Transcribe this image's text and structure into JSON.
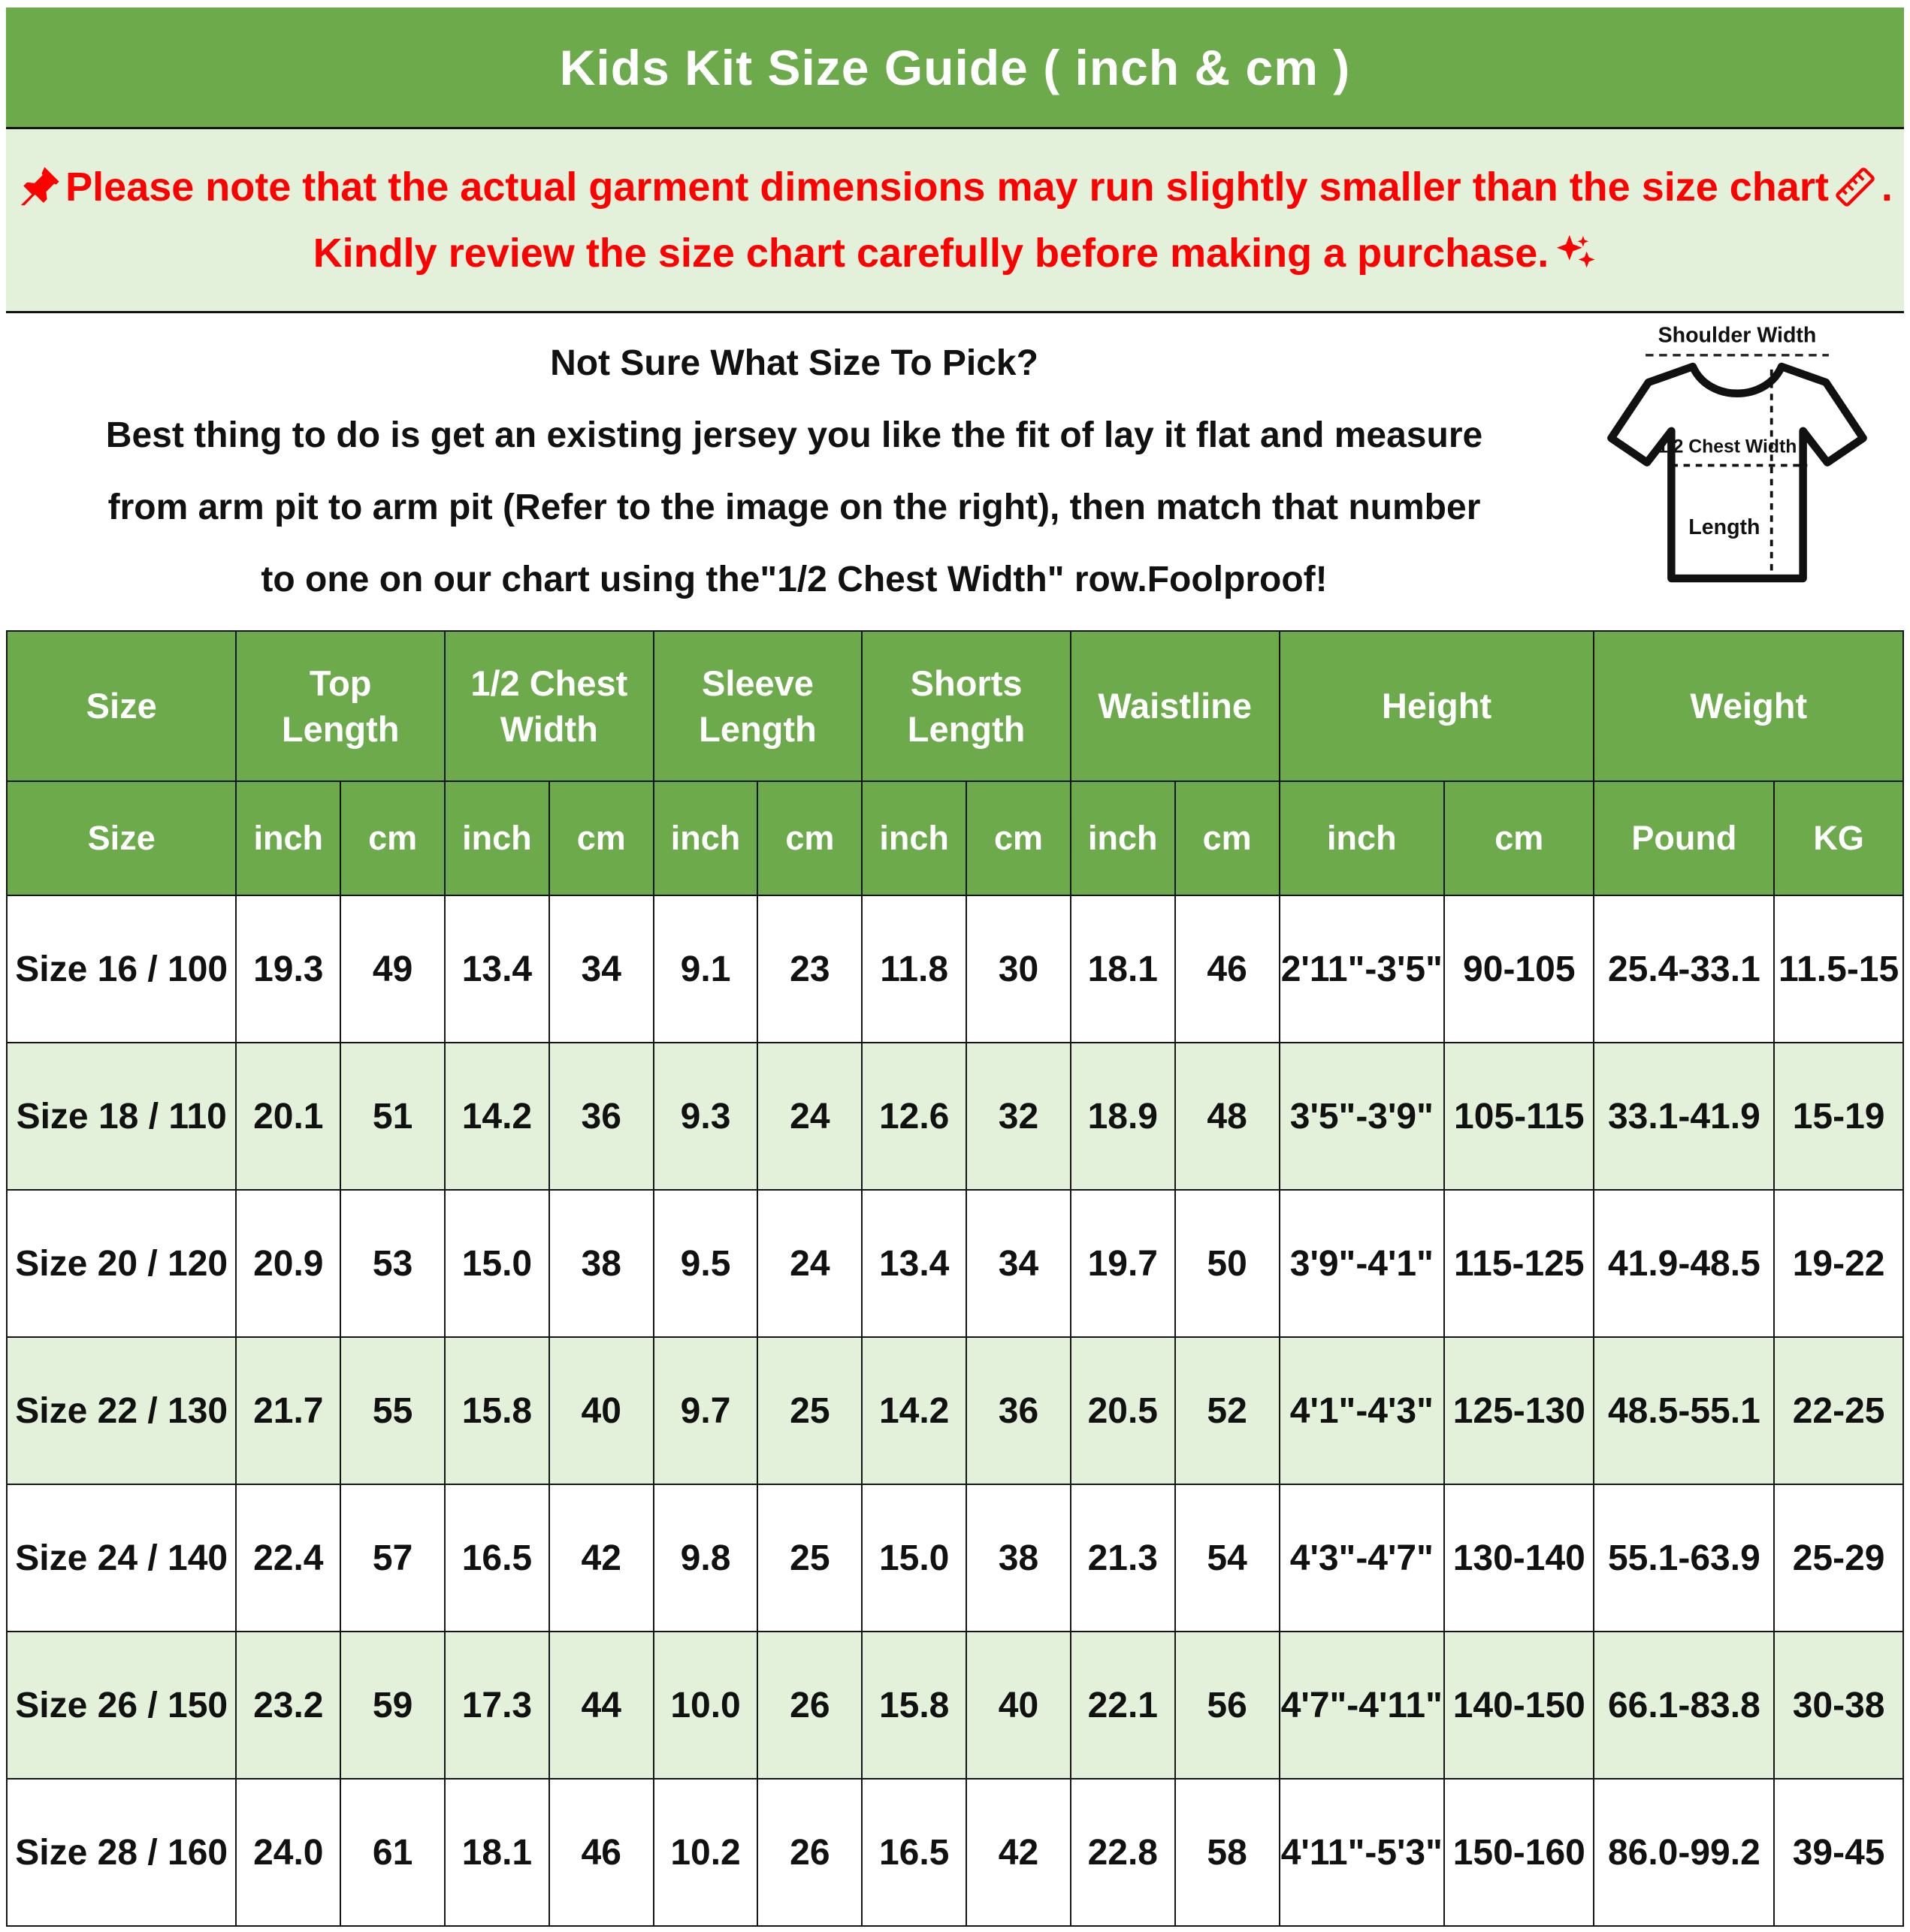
{
  "title": "Kids Kit Size Guide ( inch & cm )",
  "notice": {
    "line1": "Please note that the actual garment dimensions may run slightly smaller than the size chart",
    "line1_suffix": ".",
    "line2": "Kindly review the size chart carefully before making a purchase.",
    "text_color": "#ff0000",
    "icons": [
      "pushpin-icon",
      "ruler-icon",
      "sparkles-icon"
    ]
  },
  "howto": {
    "heading": "Not Sure What Size To Pick?",
    "line1": "Best thing to do is get an existing jersey you like the fit of lay it flat and measure",
    "line2": "from arm pit to arm pit (Refer to the image on the right), then match that number",
    "line3": "to one on our chart using the\"1/2 Chest Width\" row.Foolproof!"
  },
  "diagram": {
    "shoulder_label": "Shoulder Width",
    "chest_label": "1/2 Chest Width",
    "length_label": "Length"
  },
  "table": {
    "groups": [
      {
        "label": "Size"
      },
      {
        "label": "Top Length"
      },
      {
        "label": "1/2 Chest Width"
      },
      {
        "label": "Sleeve Length"
      },
      {
        "label": "Shorts Length"
      },
      {
        "label": "Waistline"
      },
      {
        "label": "Height"
      },
      {
        "label": "Weight"
      }
    ],
    "subheaders": [
      "Size",
      "inch",
      "cm",
      "inch",
      "cm",
      "inch",
      "cm",
      "inch",
      "cm",
      "inch",
      "cm",
      "inch",
      "cm",
      "Pound",
      "KG"
    ],
    "rows": [
      [
        "Size 16 / 100",
        "19.3",
        "49",
        "13.4",
        "34",
        "9.1",
        "23",
        "11.8",
        "30",
        "18.1",
        "46",
        "2'11\"-3'5\"",
        "90-105",
        "25.4-33.1",
        "11.5-15"
      ],
      [
        "Size 18 / 110",
        "20.1",
        "51",
        "14.2",
        "36",
        "9.3",
        "24",
        "12.6",
        "32",
        "18.9",
        "48",
        "3'5\"-3'9\"",
        "105-115",
        "33.1-41.9",
        "15-19"
      ],
      [
        "Size 20 / 120",
        "20.9",
        "53",
        "15.0",
        "38",
        "9.5",
        "24",
        "13.4",
        "34",
        "19.7",
        "50",
        "3'9\"-4'1\"",
        "115-125",
        "41.9-48.5",
        "19-22"
      ],
      [
        "Size 22 / 130",
        "21.7",
        "55",
        "15.8",
        "40",
        "9.7",
        "25",
        "14.2",
        "36",
        "20.5",
        "52",
        "4'1\"-4'3\"",
        "125-130",
        "48.5-55.1",
        "22-25"
      ],
      [
        "Size 24 / 140",
        "22.4",
        "57",
        "16.5",
        "42",
        "9.8",
        "25",
        "15.0",
        "38",
        "21.3",
        "54",
        "4'3\"-4'7\"",
        "130-140",
        "55.1-63.9",
        "25-29"
      ],
      [
        "Size 26 / 150",
        "23.2",
        "59",
        "17.3",
        "44",
        "10.0",
        "26",
        "15.8",
        "40",
        "22.1",
        "56",
        "4'7\"-4'11\"",
        "140-150",
        "66.1-83.8",
        "30-38"
      ],
      [
        "Size 28 / 160",
        "24.0",
        "61",
        "18.1",
        "46",
        "10.2",
        "26",
        "16.5",
        "42",
        "22.8",
        "58",
        "4'11\"-5'3\"",
        "150-160",
        "86.0-99.2",
        "39-45"
      ]
    ]
  },
  "colors": {
    "header_green": "#6caa4b",
    "light_green": "#e3f0da",
    "notice_red": "#ff0000",
    "border_black": "#151515"
  }
}
